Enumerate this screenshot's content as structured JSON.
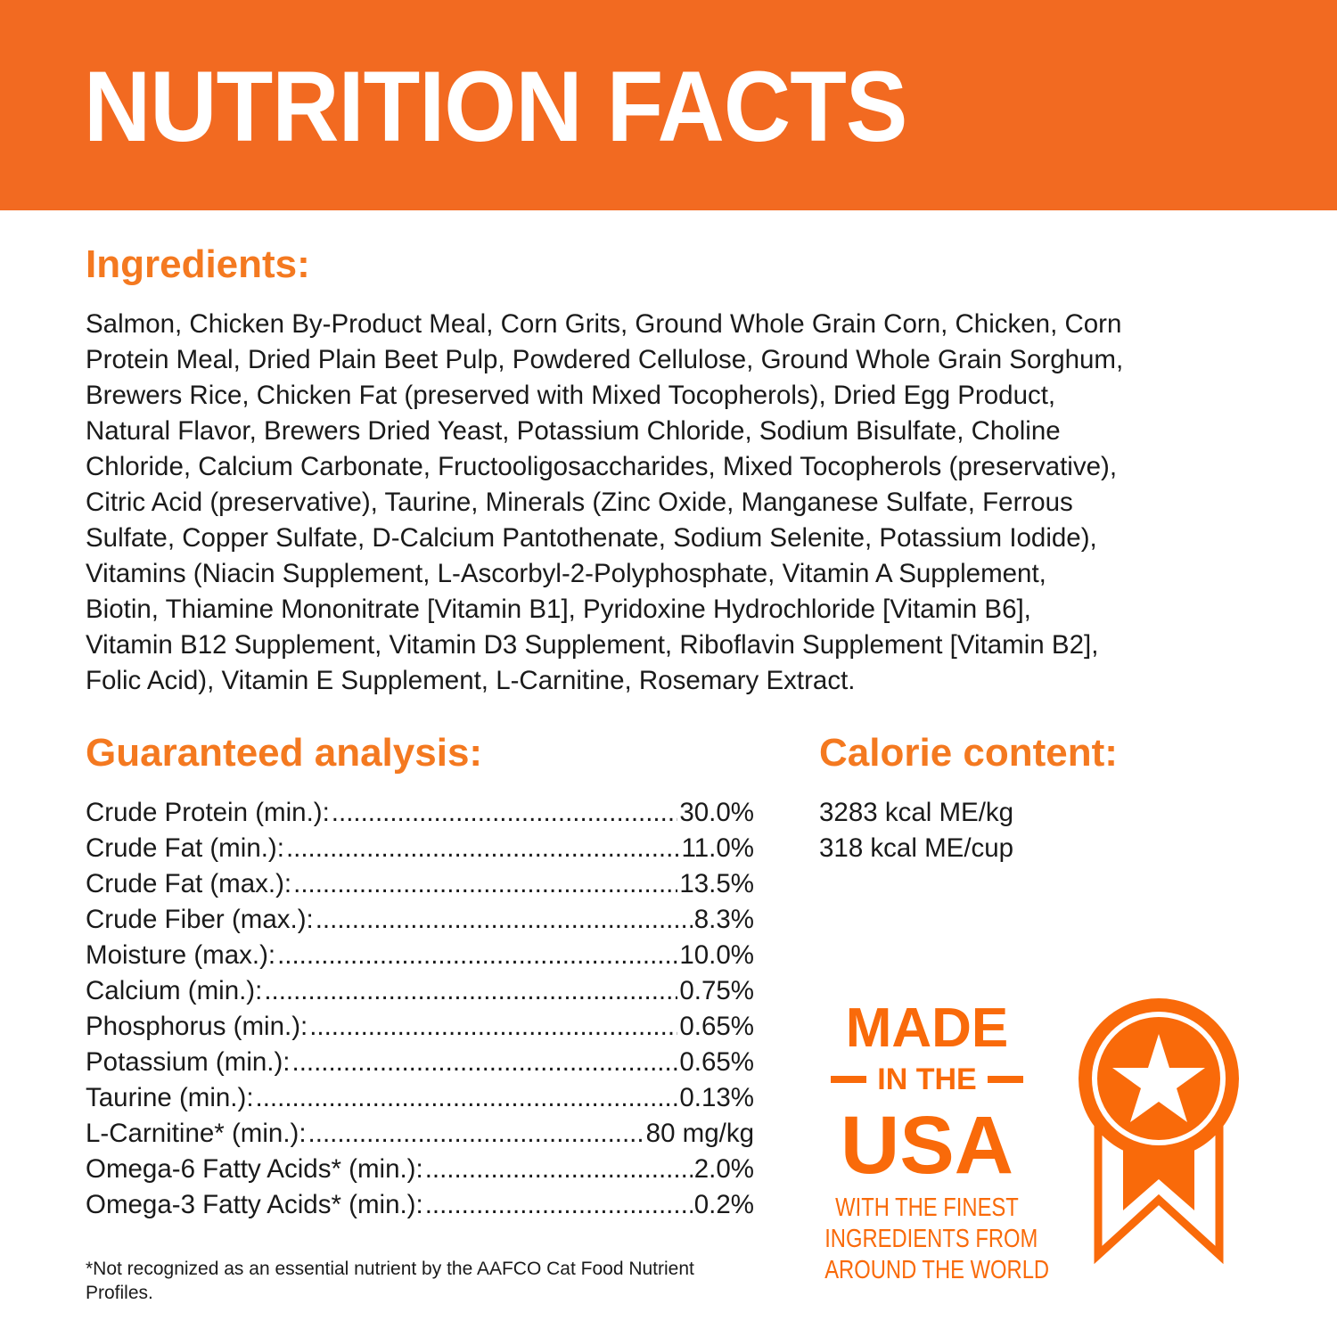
{
  "header": {
    "title": "NUTRITION FACTS",
    "color": "#f26a21"
  },
  "accent_color": "#f47920",
  "ingredients": {
    "heading": "Ingredients:",
    "lines": [
      "Salmon, Chicken By-Product Meal, Corn Grits, Ground Whole Grain Corn, Chicken, Corn",
      "Protein Meal, Dried Plain Beet Pulp, Powdered Cellulose, Ground Whole Grain Sorghum,",
      "Brewers Rice, Chicken Fat (preserved with Mixed Tocopherols), Dried Egg Product,",
      "Natural Flavor, Brewers Dried Yeast, Potassium Chloride, Sodium Bisulfate, Choline",
      "Chloride, Calcium Carbonate, Fructooligosaccharides, Mixed Tocopherols (preservative),",
      "Citric Acid (preservative), Taurine, Minerals (Zinc Oxide, Manganese Sulfate, Ferrous",
      "Sulfate, Copper Sulfate, D-Calcium Pantothenate, Sodium Selenite, Potassium Iodide),",
      "Vitamins (Niacin Supplement, L-Ascorbyl-2-Polyphosphate, Vitamin A Supplement,",
      "Biotin, Thiamine Mononitrate [Vitamin B1], Pyridoxine Hydrochloride [Vitamin B6],",
      "Vitamin B12 Supplement, Vitamin D3 Supplement, Riboflavin Supplement [Vitamin B2],",
      "Folic Acid), Vitamin E Supplement, L-Carnitine, Rosemary Extract."
    ]
  },
  "analysis": {
    "heading": "Guaranteed analysis:",
    "rows": [
      {
        "label": "Crude Protein (min.):",
        "value": "30.0%"
      },
      {
        "label": "Crude Fat (min.):",
        "value": "11.0%"
      },
      {
        "label": "Crude Fat (max.):",
        "value": "13.5%"
      },
      {
        "label": "Crude Fiber (max.):",
        "value": "8.3%"
      },
      {
        "label": "Moisture (max.):",
        "value": "10.0%"
      },
      {
        "label": "Calcium (min.):",
        "value": "0.75%"
      },
      {
        "label": "Phosphorus (min.):",
        "value": "0.65%"
      },
      {
        "label": "Potassium (min.):",
        "value": "0.65%"
      },
      {
        "label": "Taurine (min.):",
        "value": "0.13%"
      },
      {
        "label": "L-Carnitine* (min.):",
        "value": "80 mg/kg"
      },
      {
        "label": "Omega-6 Fatty Acids* (min.):",
        "value": "2.0%"
      },
      {
        "label": "Omega-3 Fatty Acids* (min.):",
        "value": "0.2%"
      }
    ],
    "footnote": "*Not recognized as an essential nutrient by the AAFCO Cat Food Nutrient Profiles."
  },
  "calorie": {
    "heading": "Calorie content:",
    "lines": [
      "3283 kcal ME/kg",
      "318 kcal ME/cup"
    ]
  },
  "badge": {
    "made": "MADE",
    "in_the": "IN THE",
    "usa": "USA",
    "tagline": [
      "WITH THE FINEST",
      "INGREDIENTS FROM",
      "AROUND THE WORLD"
    ],
    "icon": "medal-star-icon",
    "color": "#f96a0a"
  }
}
